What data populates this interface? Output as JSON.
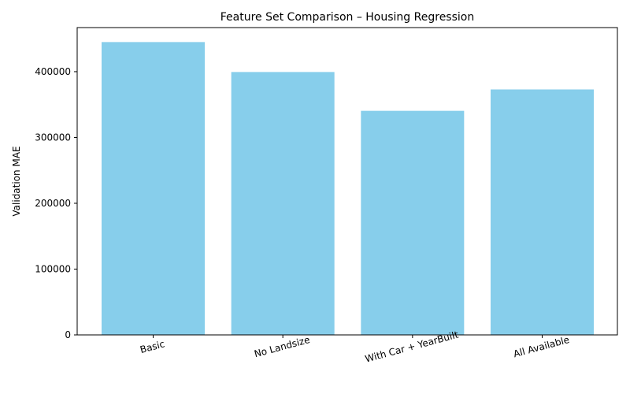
{
  "chart_data": {
    "type": "bar",
    "title": "Feature Set Comparison – Housing Regression",
    "xlabel": "",
    "ylabel": "Validation MAE",
    "categories": [
      "Basic",
      "No Landsize",
      "With Car + YearBuilt",
      "All Available"
    ],
    "values": [
      445000,
      399500,
      340500,
      373000
    ],
    "ylim": [
      0,
      467000
    ],
    "yticks": [
      0,
      100000,
      200000,
      300000,
      400000
    ],
    "ytick_labels": [
      "0",
      "100000",
      "200000",
      "300000",
      "400000"
    ],
    "bar_color": "#87CEEB",
    "grid": false,
    "legend": "none"
  }
}
